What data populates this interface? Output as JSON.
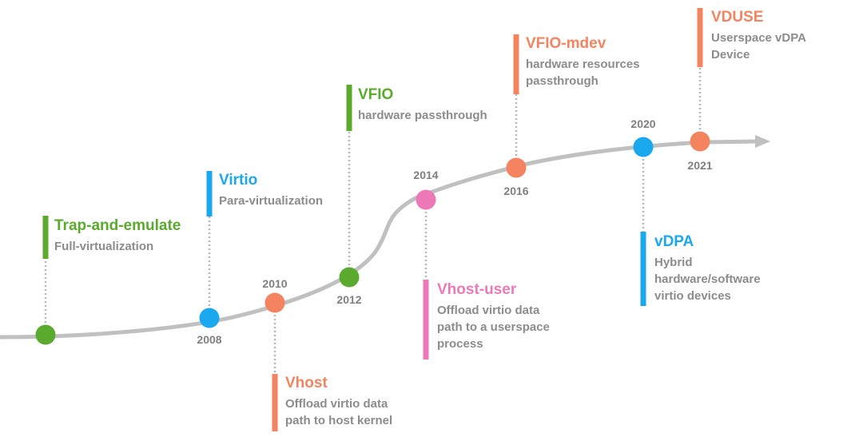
{
  "colors": {
    "green": "#5aaa2e",
    "blue": "#1aa8ee",
    "orange": "#f4845f",
    "pink": "#ee79b8",
    "timeline": "#c0c0c0",
    "connector": "#b8b8b8",
    "text_gray": "#8c8c8c",
    "year_gray": "#808080"
  },
  "milestones": [
    {
      "id": "trap-and-emulate",
      "year": "",
      "color": "green",
      "title": "Trap-and-emulate",
      "desc": [
        "Full-virtualization"
      ]
    },
    {
      "id": "virtio",
      "year": "2008",
      "color": "blue",
      "title": "Virtio",
      "desc": [
        "Para-virtualization"
      ]
    },
    {
      "id": "vhost",
      "year": "2010",
      "color": "orange",
      "title": "Vhost",
      "desc": [
        "Offload virtio data",
        "path to host kernel"
      ]
    },
    {
      "id": "vfio",
      "year": "2012",
      "color": "green",
      "title": "VFIO",
      "desc": [
        "hardware passthrough"
      ]
    },
    {
      "id": "vhost-user",
      "year": "2014",
      "color": "pink",
      "title": "Vhost-user",
      "desc": [
        "Offload virtio data",
        "path to a userspace",
        "process"
      ]
    },
    {
      "id": "vfio-mdev",
      "year": "2016",
      "color": "orange",
      "title": "VFIO-mdev",
      "desc": [
        "hardware resources",
        "passthrough"
      ]
    },
    {
      "id": "vdpa",
      "year": "2020",
      "color": "blue",
      "title": "vDPA",
      "desc": [
        "Hybrid",
        "hardware/software",
        "virtio devices"
      ]
    },
    {
      "id": "vduse",
      "year": "2021",
      "color": "orange",
      "title": "VDUSE",
      "desc": [
        "Userspace vDPA",
        "Device"
      ]
    }
  ]
}
